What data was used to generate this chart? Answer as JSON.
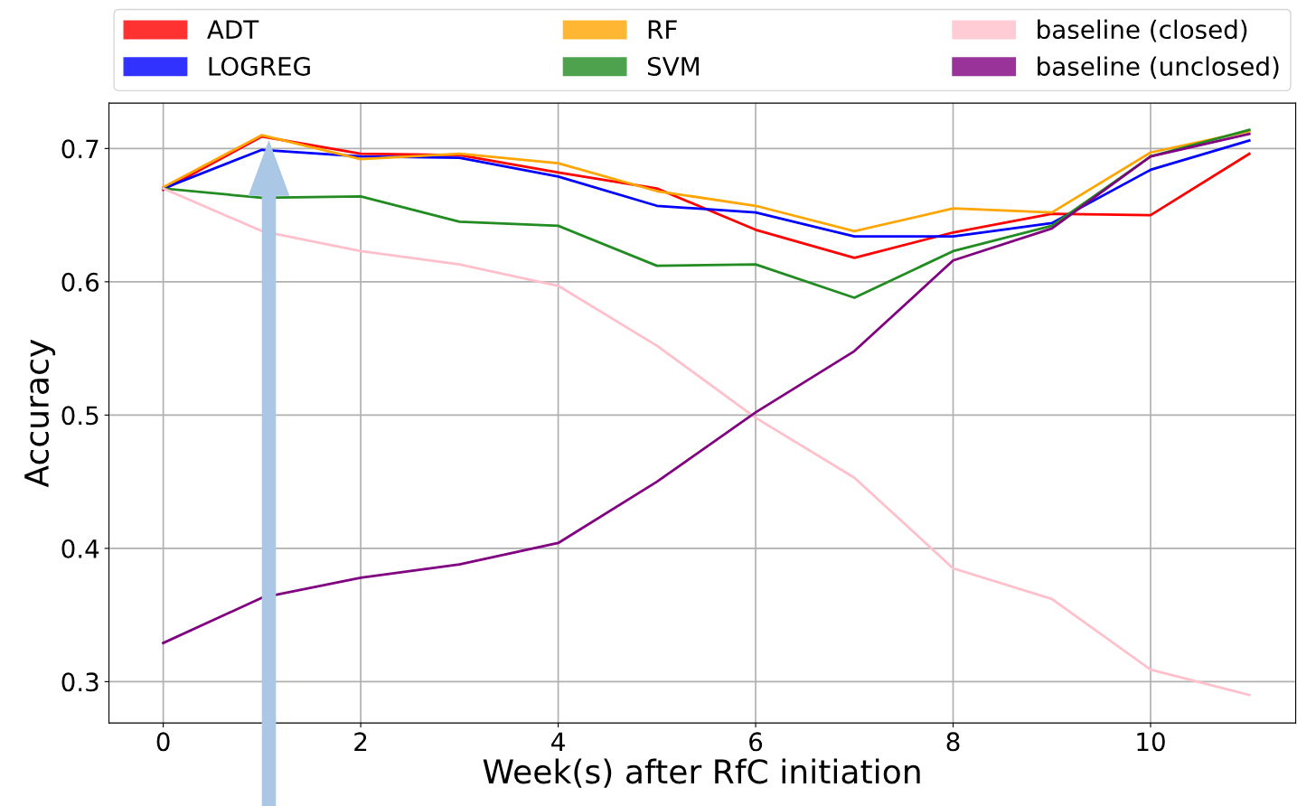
{
  "chart_data": {
    "type": "line",
    "xlabel": "Week(s) after RfC initiation",
    "ylabel": "Accuracy",
    "x": [
      0,
      1,
      2,
      3,
      4,
      5,
      6,
      7,
      8,
      9,
      10,
      11
    ],
    "series": [
      {
        "name": "ADT",
        "color": "#ff0000",
        "values": [
          0.669,
          0.709,
          0.696,
          0.695,
          0.682,
          0.67,
          0.639,
          0.618,
          0.637,
          0.651,
          0.65,
          0.696
        ]
      },
      {
        "name": "LOGREG",
        "color": "#0000ff",
        "values": [
          0.67,
          0.699,
          0.694,
          0.693,
          0.679,
          0.657,
          0.652,
          0.634,
          0.634,
          0.644,
          0.684,
          0.706
        ]
      },
      {
        "name": "RF",
        "color": "#ffa500",
        "values": [
          0.671,
          0.71,
          0.692,
          0.696,
          0.689,
          0.668,
          0.657,
          0.638,
          0.655,
          0.652,
          0.697,
          0.713
        ]
      },
      {
        "name": "SVM",
        "color": "#228b22",
        "values": [
          0.67,
          0.663,
          0.664,
          0.645,
          0.642,
          0.612,
          0.613,
          0.588,
          0.623,
          0.642,
          0.694,
          0.714
        ]
      },
      {
        "name": "baseline (closed)",
        "color": "#ffc0cb",
        "values": [
          0.67,
          0.638,
          0.623,
          0.613,
          0.597,
          0.552,
          0.498,
          0.453,
          0.385,
          0.362,
          0.309,
          0.29
        ]
      },
      {
        "name": "baseline (unclosed)",
        "color": "#800080",
        "values": [
          0.329,
          0.363,
          0.378,
          0.388,
          0.404,
          0.45,
          0.502,
          0.548,
          0.616,
          0.64,
          0.694,
          0.711
        ]
      }
    ],
    "xlim": [
      -0.55,
      11.47
    ],
    "ylim": [
      0.269,
      0.734
    ],
    "xticks": [
      0,
      2,
      4,
      6,
      8,
      10
    ],
    "yticks": [
      0.3,
      0.4,
      0.5,
      0.6,
      0.7
    ],
    "grid": true,
    "legend": "top"
  }
}
